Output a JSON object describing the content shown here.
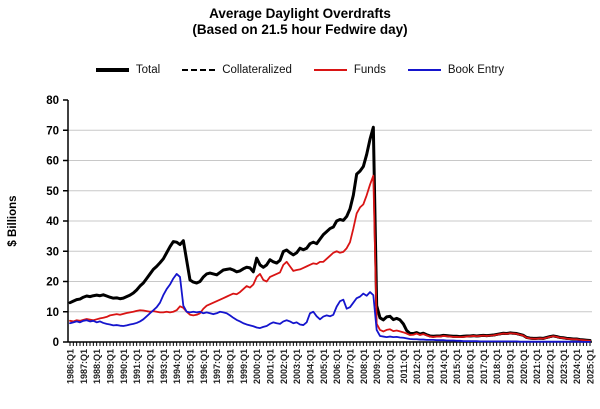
{
  "title": "Average Daylight Overdrafts",
  "subtitle": "(Based on 21.5 hour Fedwire day)",
  "chart_data": {
    "type": "line",
    "title": "Average Daylight Overdrafts",
    "subtitle": "(Based on 21.5 hour Fedwire day)",
    "ylabel": "$ Billions",
    "ylim": [
      0,
      80
    ],
    "y_ticks": [
      0,
      10,
      20,
      30,
      40,
      50,
      60,
      70,
      80
    ],
    "grid": "horizontal",
    "legend_position": "top",
    "x_frequency": "quarterly",
    "x_start": "1986:Q1",
    "x_end": "2025:Q1",
    "x_tick_labels": [
      "1986:Q1",
      "1987:Q1",
      "1988:Q1",
      "1989:Q1",
      "1990:Q1",
      "1991:Q1",
      "1992:Q1",
      "1993:Q1",
      "1994:Q1",
      "1995:Q1",
      "1996:Q1",
      "1997:Q1",
      "1998:Q1",
      "1999:Q1",
      "2000:Q1",
      "2001:Q1",
      "2002:Q1",
      "2003:Q1",
      "2004:Q1",
      "2005:Q1",
      "2006:Q1",
      "2007:Q1",
      "2008:Q1",
      "2009:Q1",
      "2010:Q1",
      "2011:Q1",
      "2012:Q1",
      "2013:Q1",
      "2014:Q1",
      "2015:Q1",
      "2016:Q1",
      "2017:Q1",
      "2018:Q1",
      "2019:Q1",
      "2020:Q1",
      "2021:Q1",
      "2022:Q1",
      "2023:Q1",
      "2024:Q1",
      "2025:Q1"
    ],
    "series": [
      {
        "name": "Total",
        "color": "#000000",
        "width": 3,
        "dash": null,
        "values": [
          13.0,
          13.5,
          14.0,
          14.2,
          14.8,
          15.2,
          15.0,
          15.3,
          15.5,
          15.3,
          15.6,
          15.2,
          14.8,
          14.5,
          14.6,
          14.3,
          14.5,
          15.0,
          15.5,
          16.2,
          17.2,
          18.5,
          19.5,
          21.0,
          22.5,
          24.0,
          25.0,
          26.2,
          27.5,
          29.5,
          31.5,
          33.2,
          33.0,
          32.2,
          33.5,
          27.0,
          20.5,
          19.8,
          19.5,
          20.0,
          21.5,
          22.5,
          22.8,
          22.5,
          22.2,
          23.0,
          23.8,
          24.0,
          24.2,
          23.8,
          23.2,
          23.5,
          24.2,
          24.7,
          24.5,
          23.2,
          27.7,
          25.5,
          24.7,
          25.5,
          27.2,
          26.5,
          26.1,
          27.0,
          29.9,
          30.4,
          29.5,
          28.8,
          29.5,
          31.0,
          30.5,
          31.0,
          32.5,
          33.0,
          32.5,
          34.0,
          35.5,
          36.5,
          37.5,
          38.0,
          40.0,
          40.5,
          40.2,
          41.5,
          44.0,
          48.5,
          55.5,
          56.5,
          58.0,
          62.0,
          67.0,
          71.0,
          12.0,
          8.0,
          7.3,
          8.3,
          8.5,
          7.4,
          7.8,
          7.3,
          6.0,
          3.8,
          2.8,
          2.8,
          3.1,
          2.6,
          2.9,
          2.4,
          2.0,
          1.9,
          2.0,
          2.0,
          2.2,
          2.1,
          2.0,
          1.9,
          1.9,
          1.8,
          1.9,
          2.0,
          2.0,
          2.1,
          2.0,
          2.1,
          2.2,
          2.1,
          2.2,
          2.3,
          2.5,
          2.7,
          2.9,
          2.8,
          3.0,
          2.9,
          2.8,
          2.5,
          2.2,
          1.5,
          1.3,
          1.2,
          1.2,
          1.3,
          1.2,
          1.5,
          1.8,
          2.0,
          1.8,
          1.5,
          1.4,
          1.2,
          1.1,
          1.0,
          1.0,
          0.8,
          0.7,
          0.6,
          0.5
        ]
      },
      {
        "name": "Collateralized",
        "color": "#000000",
        "width": 2,
        "dash": "5,3",
        "values": [
          null,
          null,
          null,
          null,
          null,
          null,
          null,
          null,
          null,
          null,
          null,
          null,
          null,
          null,
          null,
          null,
          null,
          null,
          null,
          null,
          null,
          null,
          null,
          null,
          null,
          null,
          null,
          null,
          null,
          null,
          null,
          null,
          null,
          null,
          null,
          null,
          null,
          null,
          null,
          null,
          null,
          null,
          null,
          null,
          null,
          null,
          null,
          null,
          null,
          null,
          null,
          null,
          null,
          null,
          null,
          null,
          null,
          null,
          null,
          null,
          null,
          null,
          null,
          null,
          null,
          null,
          null,
          null,
          null,
          null,
          null,
          null,
          null,
          null,
          null,
          null,
          null,
          null,
          null,
          null,
          null,
          null,
          null,
          null,
          null,
          null,
          null,
          null,
          null,
          null,
          null,
          null,
          null,
          null,
          null,
          null,
          null,
          null,
          null,
          null,
          null,
          3.65,
          2.65,
          2.65,
          2.95,
          2.45,
          2.75,
          2.25,
          1.85,
          1.75,
          1.85,
          1.85,
          2.05,
          1.95,
          1.85,
          1.75,
          1.75,
          1.65,
          1.75,
          1.85,
          1.85,
          1.95,
          1.85,
          1.95,
          2.05,
          1.95,
          2.05,
          2.15,
          2.35,
          2.55,
          2.75,
          2.65,
          2.85,
          2.75,
          2.65,
          2.35,
          2.05,
          1.35,
          1.15,
          1.05,
          1.05,
          1.15,
          1.05,
          1.35,
          1.65,
          1.85,
          1.65,
          1.35,
          1.25,
          1.05,
          0.95,
          0.85,
          0.85,
          0.65,
          0.55,
          0.45,
          0.35
        ]
      },
      {
        "name": "Funds",
        "color": "#d91414",
        "width": 1.8,
        "dash": null,
        "values": [
          7.0,
          6.8,
          7.2,
          7.0,
          7.3,
          7.6,
          7.4,
          7.2,
          7.5,
          7.8,
          8.0,
          8.3,
          8.8,
          9.0,
          9.2,
          9.0,
          9.3,
          9.6,
          9.8,
          10.0,
          10.3,
          10.5,
          10.4,
          10.2,
          10.0,
          10.2,
          10.0,
          9.8,
          9.8,
          10.0,
          9.8,
          10.0,
          10.5,
          11.8,
          11.3,
          10.0,
          9.0,
          8.8,
          9.0,
          9.5,
          11.0,
          12.0,
          12.5,
          13.0,
          13.5,
          14.0,
          14.5,
          15.0,
          15.5,
          16.0,
          15.8,
          16.5,
          17.5,
          18.5,
          18.0,
          19.0,
          21.5,
          22.5,
          20.5,
          20.0,
          21.5,
          22.0,
          22.5,
          23.0,
          25.5,
          26.5,
          25.0,
          23.5,
          23.8,
          24.0,
          24.5,
          25.0,
          25.5,
          26.0,
          25.8,
          26.5,
          26.5,
          27.5,
          28.5,
          29.5,
          30.0,
          29.5,
          29.8,
          31.0,
          33.0,
          37.5,
          42.5,
          44.5,
          45.5,
          48.5,
          52.0,
          55.0,
          6.0,
          4.0,
          3.5,
          4.0,
          4.2,
          3.6,
          3.8,
          3.5,
          3.2,
          2.8,
          2.3,
          2.4,
          2.8,
          2.3,
          2.6,
          2.2,
          1.8,
          1.7,
          1.8,
          1.8,
          2.0,
          1.9,
          1.8,
          1.7,
          1.7,
          1.6,
          1.7,
          1.8,
          1.9,
          2.0,
          1.9,
          2.0,
          2.1,
          2.0,
          2.1,
          2.2,
          2.4,
          2.6,
          2.8,
          2.7,
          2.9,
          2.8,
          2.7,
          2.4,
          2.1,
          1.4,
          1.2,
          1.1,
          1.1,
          1.2,
          1.1,
          1.4,
          1.7,
          1.9,
          1.7,
          1.4,
          1.3,
          1.1,
          1.0,
          0.9,
          0.9,
          0.7,
          0.6,
          0.5,
          0.4
        ]
      },
      {
        "name": "Book Entry",
        "color": "#1515cd",
        "width": 1.8,
        "dash": null,
        "values": [
          6.2,
          6.5,
          6.8,
          6.5,
          7.0,
          7.2,
          6.8,
          7.0,
          6.5,
          6.8,
          6.3,
          6.0,
          5.8,
          5.5,
          5.6,
          5.4,
          5.3,
          5.5,
          5.8,
          6.0,
          6.3,
          6.8,
          7.5,
          8.5,
          9.5,
          10.5,
          11.5,
          13.0,
          15.5,
          17.5,
          19.0,
          21.0,
          22.5,
          21.5,
          12.0,
          10.0,
          9.8,
          10.0,
          9.8,
          10.0,
          9.5,
          9.8,
          9.5,
          9.2,
          9.5,
          10.0,
          9.8,
          9.5,
          8.8,
          8.0,
          7.3,
          6.8,
          6.2,
          5.8,
          5.5,
          5.2,
          4.8,
          4.6,
          5.0,
          5.3,
          6.0,
          6.5,
          6.2,
          6.0,
          6.8,
          7.2,
          6.8,
          6.2,
          6.5,
          5.8,
          5.6,
          6.5,
          9.5,
          10.0,
          8.5,
          7.5,
          8.4,
          8.8,
          8.5,
          9.0,
          11.7,
          13.5,
          14.0,
          11.0,
          11.5,
          13.0,
          14.5,
          15.0,
          16.0,
          15.3,
          16.5,
          15.5,
          4.0,
          2.0,
          1.8,
          1.6,
          1.8,
          1.6,
          1.7,
          1.5,
          1.4,
          1.2,
          1.0,
          0.9,
          0.9,
          0.8,
          0.8,
          0.7,
          0.7,
          0.7,
          0.6,
          0.6,
          0.6,
          0.5,
          0.5,
          0.5,
          0.4,
          0.4,
          0.3,
          0.3,
          0.3,
          0.3,
          0.3,
          0.2,
          0.2,
          0.2,
          0.2,
          0.2,
          0.2,
          0.2,
          0.2,
          0.2,
          0.2,
          0.2,
          0.2,
          0.1,
          0.1,
          0.1,
          0.1,
          0.1,
          0.1,
          0.1,
          0.1,
          0.1,
          0.1,
          0.1,
          0.1,
          0.1,
          0.1,
          0.1,
          0.1,
          0.1,
          0.1,
          0.1,
          0.05,
          0.05,
          0.05
        ]
      }
    ]
  },
  "colors": {
    "background": "#ffffff",
    "gridline": "#c8c8c8",
    "axis": "#000000",
    "tick_label": "#222222"
  }
}
